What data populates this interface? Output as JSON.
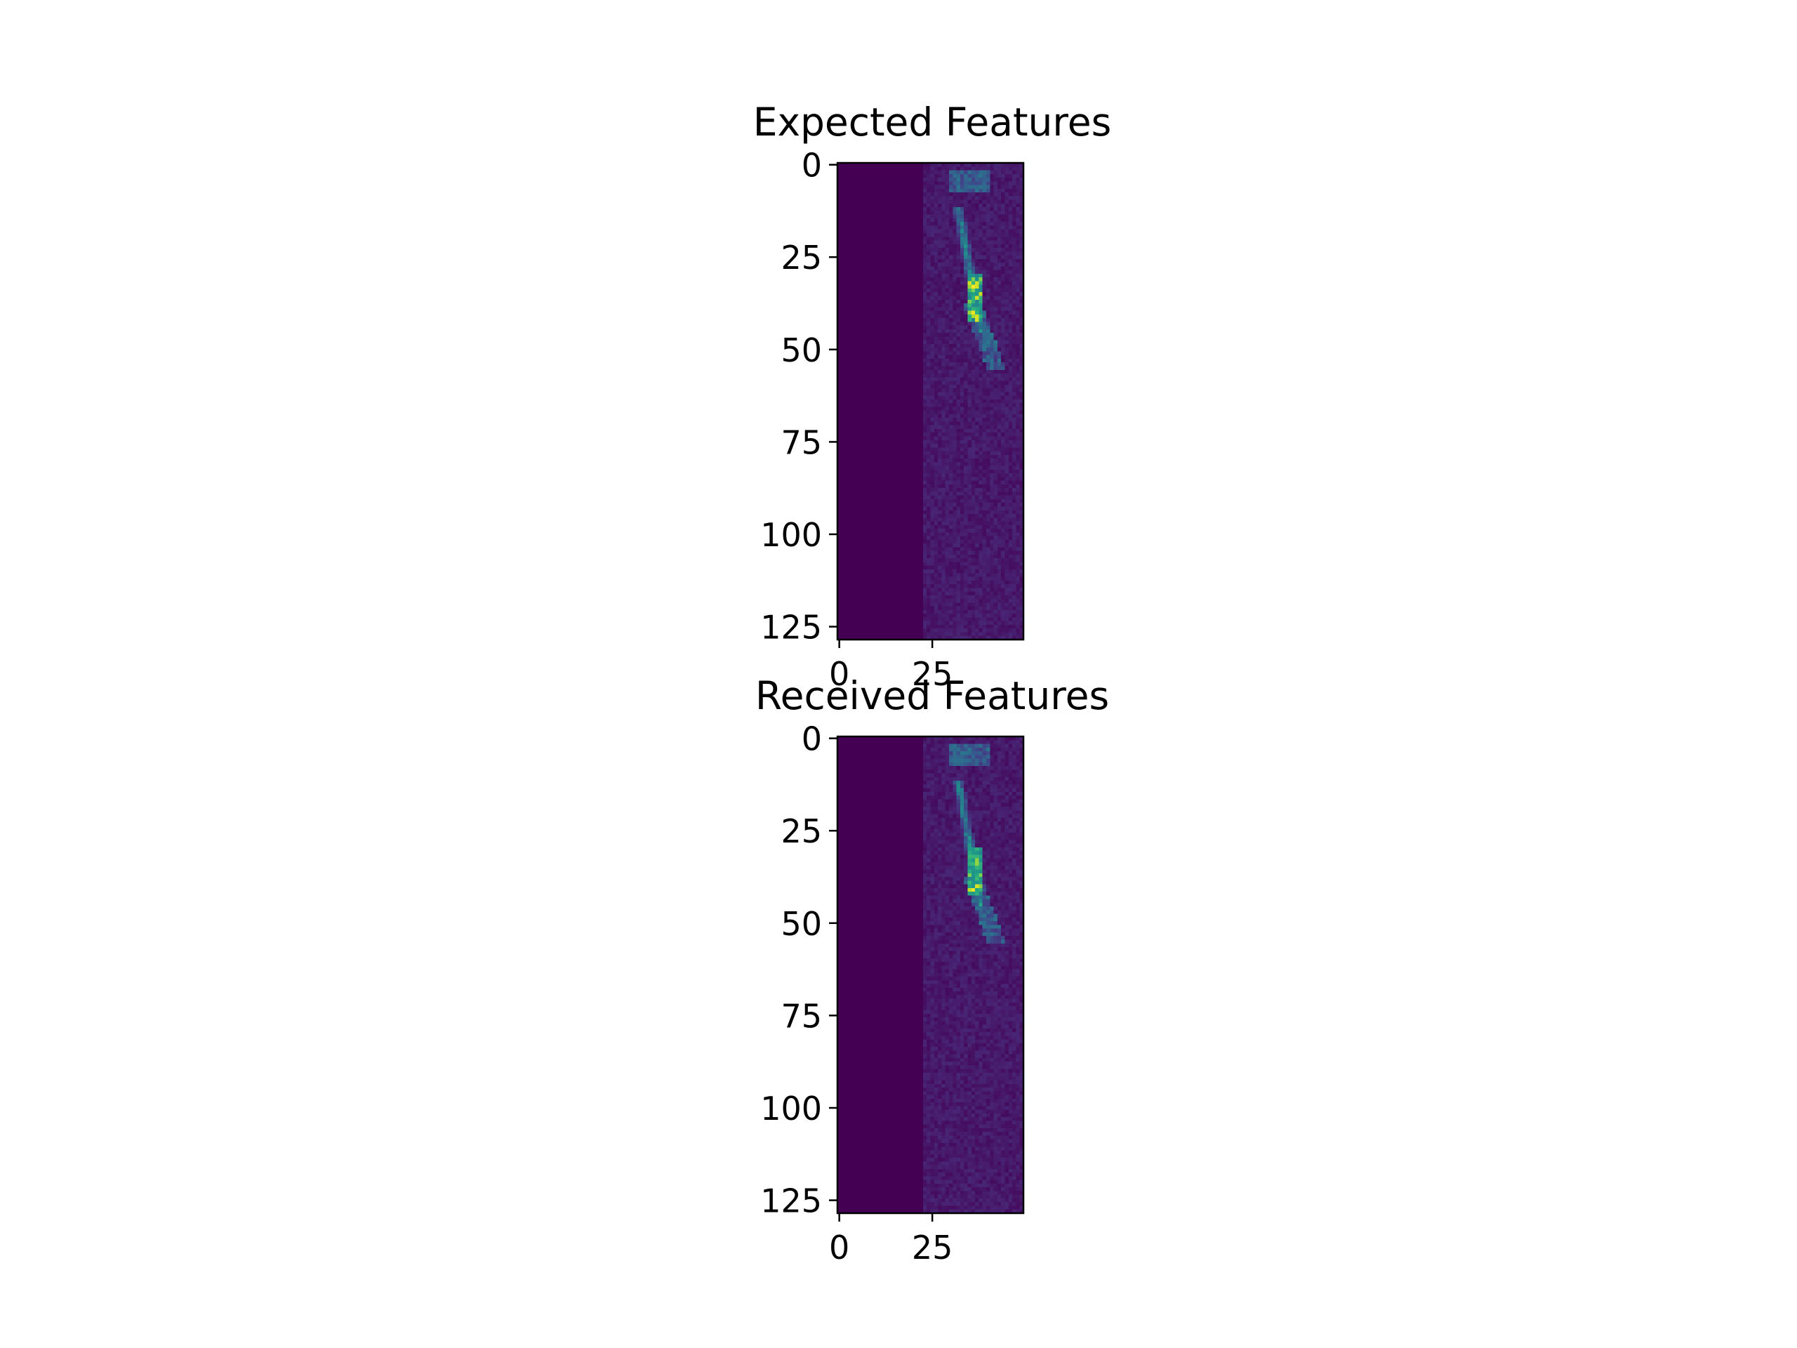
{
  "chart_data": [
    {
      "type": "heatmap",
      "title": "Expected Features",
      "colormap": "viridis",
      "image_shape": [
        129,
        50
      ],
      "xlim": [
        -0.5,
        49.5
      ],
      "ylim": [
        128.5,
        -0.5
      ],
      "x_ticks": [
        0,
        25
      ],
      "y_ticks": [
        0,
        25,
        50,
        75,
        100,
        125
      ],
      "background_value": 0.0,
      "noise_region_columns": [
        23,
        49
      ],
      "features": {
        "top_blob": {
          "rows": [
            2,
            7
          ],
          "cols": [
            30,
            40
          ],
          "intensity": 0.35
        },
        "streak": {
          "rows": [
            12,
            45
          ],
          "cols": [
            32,
            38
          ],
          "intensity": 0.55
        },
        "bright_core": {
          "rows": [
            30,
            42
          ],
          "cols": [
            35,
            38
          ],
          "peak_intensity": 1.0
        },
        "fan": {
          "rows": [
            38,
            55
          ],
          "cols": [
            36,
            42
          ],
          "intensity": 0.4
        }
      }
    },
    {
      "type": "heatmap",
      "title": "Received Features",
      "colormap": "viridis",
      "image_shape": [
        129,
        50
      ],
      "xlim": [
        -0.5,
        49.5
      ],
      "ylim": [
        128.5,
        -0.5
      ],
      "x_ticks": [
        0,
        25
      ],
      "y_ticks": [
        0,
        25,
        50,
        75,
        100,
        125
      ],
      "background_value": 0.0,
      "noise_region_columns": [
        23,
        49
      ],
      "features": {
        "top_blob": {
          "rows": [
            2,
            7
          ],
          "cols": [
            30,
            40
          ],
          "intensity": 0.35
        },
        "streak": {
          "rows": [
            12,
            45
          ],
          "cols": [
            32,
            38
          ],
          "intensity": 0.55
        },
        "bright_core": {
          "rows": [
            30,
            42
          ],
          "cols": [
            35,
            38
          ],
          "peak_intensity": 1.0
        },
        "fan": {
          "rows": [
            38,
            55
          ],
          "cols": [
            36,
            42
          ],
          "intensity": 0.4
        }
      }
    }
  ]
}
